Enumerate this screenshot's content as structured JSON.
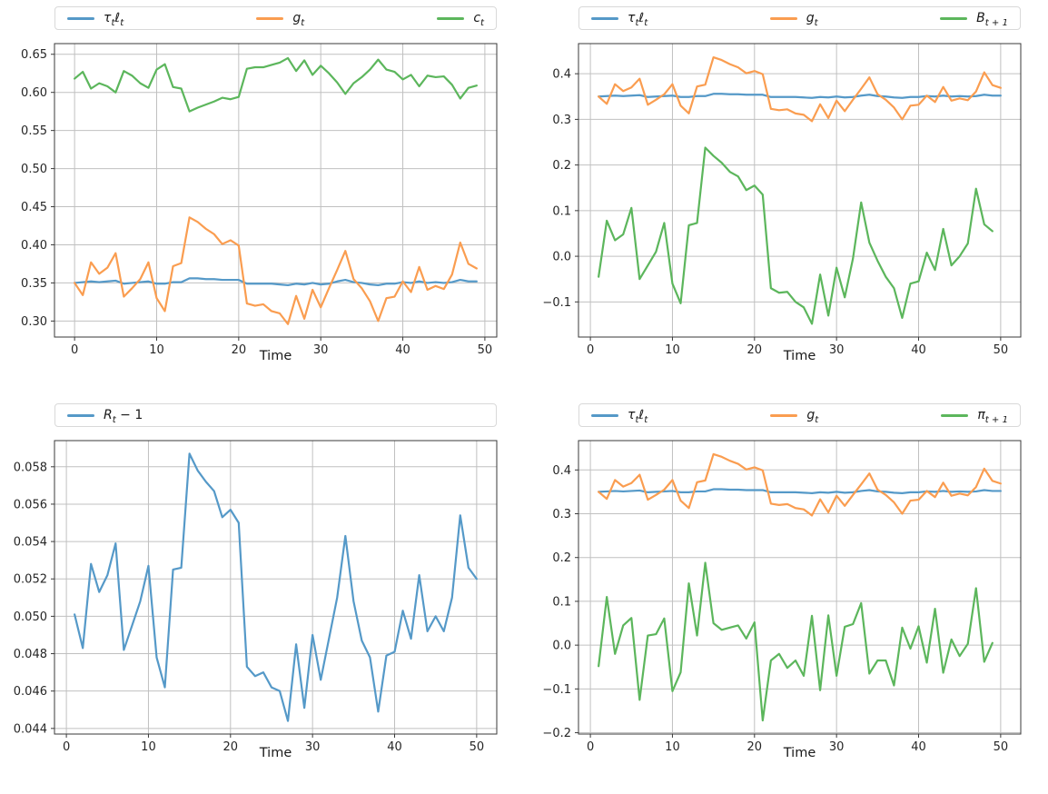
{
  "figure": {
    "background": "#ffffff",
    "grid_color": "#c0c0c0",
    "spine_color": "#3a3a3a",
    "tick_label_color": "#262626",
    "xlabel": "Time"
  },
  "palette": {
    "blue": "#5599C8",
    "orange": "#FA9D50",
    "green": "#5CB65C"
  },
  "chart_data": [
    {
      "id": "top-left",
      "type": "line",
      "xlabel": "Time",
      "xlim": [
        -2.45,
        51.45
      ],
      "ylim": [
        0.279,
        0.664
      ],
      "xticks": [
        0,
        10,
        20,
        30,
        40,
        50
      ],
      "yticks": [
        {
          "v": 0.3,
          "label": "0.30"
        },
        {
          "v": 0.35,
          "label": "0.35"
        },
        {
          "v": 0.4,
          "label": "0.40"
        },
        {
          "v": 0.45,
          "label": "0.45"
        },
        {
          "v": 0.5,
          "label": "0.50"
        },
        {
          "v": 0.55,
          "label": "0.55"
        },
        {
          "v": 0.6,
          "label": "0.60"
        },
        {
          "v": 0.65,
          "label": "0.65"
        }
      ],
      "grid": true,
      "legend_position": "top",
      "series": [
        {
          "name": "tau_t_ell_t",
          "label": [
            [
              "i",
              "τ"
            ],
            [
              "sub",
              "t"
            ],
            [
              "i",
              "ℓ"
            ],
            [
              "sub",
              "t"
            ]
          ],
          "color": "#5599C8",
          "x_start": 0,
          "values": [
            0.35,
            0.351,
            0.352,
            0.351,
            0.352,
            0.353,
            0.349,
            0.35,
            0.351,
            0.352,
            0.349,
            0.349,
            0.351,
            0.351,
            0.356,
            0.356,
            0.355,
            0.355,
            0.354,
            0.354,
            0.354,
            0.349,
            0.349,
            0.349,
            0.349,
            0.348,
            0.347,
            0.349,
            0.348,
            0.35,
            0.348,
            0.349,
            0.352,
            0.354,
            0.351,
            0.35,
            0.348,
            0.347,
            0.349,
            0.349,
            0.351,
            0.35,
            0.352,
            0.35,
            0.351,
            0.35,
            0.351,
            0.354,
            0.352,
            0.352
          ]
        },
        {
          "name": "g_t",
          "label": [
            [
              "i",
              "g"
            ],
            [
              "sub",
              "t"
            ]
          ],
          "color": "#FA9D50",
          "x_start": 0,
          "values": [
            0.35,
            0.334,
            0.377,
            0.362,
            0.37,
            0.389,
            0.332,
            0.343,
            0.355,
            0.377,
            0.33,
            0.313,
            0.372,
            0.376,
            0.436,
            0.43,
            0.421,
            0.414,
            0.401,
            0.406,
            0.399,
            0.323,
            0.32,
            0.322,
            0.313,
            0.31,
            0.296,
            0.333,
            0.303,
            0.341,
            0.318,
            0.343,
            0.367,
            0.392,
            0.355,
            0.343,
            0.326,
            0.3,
            0.33,
            0.332,
            0.352,
            0.338,
            0.371,
            0.341,
            0.346,
            0.342,
            0.361,
            0.403,
            0.375,
            0.369
          ]
        },
        {
          "name": "c_t",
          "label": [
            [
              "i",
              "c"
            ],
            [
              "sub",
              "t"
            ]
          ],
          "color": "#5CB65C",
          "x_start": 0,
          "values": [
            0.618,
            0.627,
            0.605,
            0.612,
            0.608,
            0.6,
            0.628,
            0.622,
            0.612,
            0.606,
            0.63,
            0.637,
            0.607,
            0.605,
            0.575,
            0.58,
            0.584,
            0.588,
            0.593,
            0.591,
            0.594,
            0.631,
            0.633,
            0.633,
            0.636,
            0.639,
            0.645,
            0.628,
            0.642,
            0.623,
            0.635,
            0.625,
            0.613,
            0.598,
            0.612,
            0.62,
            0.63,
            0.643,
            0.63,
            0.627,
            0.617,
            0.623,
            0.608,
            0.622,
            0.62,
            0.621,
            0.61,
            0.592,
            0.606,
            0.609
          ]
        }
      ]
    },
    {
      "id": "top-right",
      "type": "line",
      "xlabel": "Time",
      "xlim": [
        -1.45,
        52.45
      ],
      "ylim": [
        -0.177,
        0.466
      ],
      "xticks": [
        0,
        10,
        20,
        30,
        40,
        50
      ],
      "yticks": [
        {
          "v": -0.1,
          "label": "−0.1"
        },
        {
          "v": 0.0,
          "label": "0.0"
        },
        {
          "v": 0.1,
          "label": "0.1"
        },
        {
          "v": 0.2,
          "label": "0.2"
        },
        {
          "v": 0.3,
          "label": "0.3"
        },
        {
          "v": 0.4,
          "label": "0.4"
        }
      ],
      "grid": true,
      "legend_position": "top",
      "series": [
        {
          "name": "tau_t_ell_t",
          "label": [
            [
              "i",
              "τ"
            ],
            [
              "sub",
              "t"
            ],
            [
              "i",
              "ℓ"
            ],
            [
              "sub",
              "t"
            ]
          ],
          "color": "#5599C8",
          "x_start": 1,
          "values": [
            0.35,
            0.351,
            0.352,
            0.351,
            0.352,
            0.353,
            0.349,
            0.35,
            0.351,
            0.352,
            0.349,
            0.349,
            0.351,
            0.351,
            0.356,
            0.356,
            0.355,
            0.355,
            0.354,
            0.354,
            0.354,
            0.349,
            0.349,
            0.349,
            0.349,
            0.348,
            0.347,
            0.349,
            0.348,
            0.35,
            0.348,
            0.349,
            0.352,
            0.354,
            0.351,
            0.35,
            0.348,
            0.347,
            0.349,
            0.349,
            0.351,
            0.35,
            0.352,
            0.35,
            0.351,
            0.35,
            0.351,
            0.354,
            0.352,
            0.352
          ]
        },
        {
          "name": "g_t",
          "label": [
            [
              "i",
              "g"
            ],
            [
              "sub",
              "t"
            ]
          ],
          "color": "#FA9D50",
          "x_start": 1,
          "values": [
            0.35,
            0.334,
            0.377,
            0.362,
            0.37,
            0.389,
            0.332,
            0.343,
            0.355,
            0.377,
            0.33,
            0.313,
            0.372,
            0.376,
            0.436,
            0.43,
            0.421,
            0.414,
            0.401,
            0.406,
            0.399,
            0.323,
            0.32,
            0.322,
            0.313,
            0.31,
            0.296,
            0.333,
            0.303,
            0.341,
            0.318,
            0.343,
            0.367,
            0.392,
            0.355,
            0.343,
            0.326,
            0.3,
            0.33,
            0.332,
            0.352,
            0.338,
            0.371,
            0.341,
            0.346,
            0.342,
            0.361,
            0.403,
            0.375,
            0.369
          ]
        },
        {
          "name": "B_t+1",
          "label": [
            [
              "i",
              "B"
            ],
            [
              "sub",
              "t + 1"
            ]
          ],
          "color": "#5CB65C",
          "x_start": 1,
          "values": [
            -0.045,
            0.078,
            0.035,
            0.048,
            0.106,
            -0.05,
            -0.02,
            0.01,
            0.073,
            -0.06,
            -0.103,
            0.068,
            0.073,
            0.238,
            0.22,
            0.205,
            0.185,
            0.175,
            0.145,
            0.155,
            0.135,
            -0.07,
            -0.08,
            -0.078,
            -0.1,
            -0.112,
            -0.148,
            -0.04,
            -0.13,
            -0.025,
            -0.09,
            -0.005,
            0.118,
            0.03,
            -0.01,
            -0.045,
            -0.07,
            -0.135,
            -0.06,
            -0.055,
            0.008,
            -0.03,
            0.06,
            -0.02,
            0.0,
            0.028,
            0.148,
            0.07,
            0.055
          ]
        }
      ]
    },
    {
      "id": "bottom-left",
      "type": "line",
      "xlabel": "Time",
      "xlim": [
        -1.45,
        52.45
      ],
      "ylim": [
        0.0437,
        0.0594
      ],
      "xticks": [
        0,
        10,
        20,
        30,
        40,
        50
      ],
      "yticks": [
        {
          "v": 0.044,
          "label": "0.044"
        },
        {
          "v": 0.046,
          "label": "0.046"
        },
        {
          "v": 0.048,
          "label": "0.048"
        },
        {
          "v": 0.05,
          "label": "0.050"
        },
        {
          "v": 0.052,
          "label": "0.052"
        },
        {
          "v": 0.054,
          "label": "0.054"
        },
        {
          "v": 0.056,
          "label": "0.056"
        },
        {
          "v": 0.058,
          "label": "0.058"
        }
      ],
      "grid": true,
      "legend_position": "top",
      "series": [
        {
          "name": "R_t-1",
          "label": [
            [
              "i",
              "R"
            ],
            [
              "sub",
              "t"
            ],
            [
              "n",
              " − 1"
            ]
          ],
          "color": "#5599C8",
          "x_start": 1,
          "values": [
            0.0501,
            0.0483,
            0.0528,
            0.0513,
            0.0522,
            0.0539,
            0.0482,
            0.0495,
            0.0508,
            0.0527,
            0.0478,
            0.0462,
            0.0525,
            0.0526,
            0.0587,
            0.0578,
            0.0572,
            0.0567,
            0.0553,
            0.0557,
            0.055,
            0.0473,
            0.0468,
            0.047,
            0.0462,
            0.046,
            0.0444,
            0.0485,
            0.0451,
            0.049,
            0.0466,
            0.0488,
            0.051,
            0.0543,
            0.0508,
            0.0487,
            0.0478,
            0.0449,
            0.0479,
            0.0481,
            0.0503,
            0.0488,
            0.0522,
            0.0492,
            0.05,
            0.0492,
            0.051,
            0.0554,
            0.0526,
            0.052
          ]
        }
      ]
    },
    {
      "id": "bottom-right",
      "type": "line",
      "xlabel": "Time",
      "xlim": [
        -1.45,
        52.45
      ],
      "ylim": [
        -0.203,
        0.467
      ],
      "xticks": [
        0,
        10,
        20,
        30,
        40,
        50
      ],
      "yticks": [
        {
          "v": -0.2,
          "label": "−0.2"
        },
        {
          "v": -0.1,
          "label": "−0.1"
        },
        {
          "v": 0.0,
          "label": "0.0"
        },
        {
          "v": 0.1,
          "label": "0.1"
        },
        {
          "v": 0.2,
          "label": "0.2"
        },
        {
          "v": 0.3,
          "label": "0.3"
        },
        {
          "v": 0.4,
          "label": "0.4"
        }
      ],
      "grid": true,
      "legend_position": "top",
      "series": [
        {
          "name": "tau_t_ell_t",
          "label": [
            [
              "i",
              "τ"
            ],
            [
              "sub",
              "t"
            ],
            [
              "i",
              "ℓ"
            ],
            [
              "sub",
              "t"
            ]
          ],
          "color": "#5599C8",
          "x_start": 1,
          "values": [
            0.35,
            0.351,
            0.352,
            0.351,
            0.352,
            0.353,
            0.349,
            0.35,
            0.351,
            0.352,
            0.349,
            0.349,
            0.351,
            0.351,
            0.356,
            0.356,
            0.355,
            0.355,
            0.354,
            0.354,
            0.354,
            0.349,
            0.349,
            0.349,
            0.349,
            0.348,
            0.347,
            0.349,
            0.348,
            0.35,
            0.348,
            0.349,
            0.352,
            0.354,
            0.351,
            0.35,
            0.348,
            0.347,
            0.349,
            0.349,
            0.351,
            0.35,
            0.352,
            0.35,
            0.351,
            0.35,
            0.351,
            0.354,
            0.352,
            0.352
          ]
        },
        {
          "name": "g_t",
          "label": [
            [
              "i",
              "g"
            ],
            [
              "sub",
              "t"
            ]
          ],
          "color": "#FA9D50",
          "x_start": 1,
          "values": [
            0.35,
            0.334,
            0.377,
            0.362,
            0.37,
            0.389,
            0.332,
            0.343,
            0.355,
            0.377,
            0.33,
            0.313,
            0.372,
            0.376,
            0.436,
            0.43,
            0.421,
            0.414,
            0.401,
            0.406,
            0.399,
            0.323,
            0.32,
            0.322,
            0.313,
            0.31,
            0.296,
            0.333,
            0.303,
            0.341,
            0.318,
            0.343,
            0.367,
            0.392,
            0.355,
            0.343,
            0.326,
            0.3,
            0.33,
            0.332,
            0.352,
            0.338,
            0.371,
            0.341,
            0.346,
            0.342,
            0.361,
            0.403,
            0.375,
            0.369
          ]
        },
        {
          "name": "pi_t+1",
          "label": [
            [
              "i",
              "π"
            ],
            [
              "sub",
              "t + 1"
            ]
          ],
          "color": "#5CB65C",
          "x_start": 1,
          "values": [
            -0.048,
            0.11,
            -0.02,
            0.045,
            0.062,
            -0.125,
            0.022,
            0.025,
            0.061,
            -0.105,
            -0.062,
            0.141,
            0.022,
            0.188,
            0.05,
            0.035,
            0.04,
            0.045,
            0.015,
            0.052,
            -0.172,
            -0.035,
            -0.02,
            -0.052,
            -0.035,
            -0.07,
            0.067,
            -0.103,
            0.068,
            -0.07,
            0.042,
            0.048,
            0.096,
            -0.065,
            -0.035,
            -0.035,
            -0.092,
            0.04,
            -0.008,
            0.043,
            -0.04,
            0.083,
            -0.063,
            0.013,
            -0.025,
            0.003,
            0.13,
            -0.038,
            0.005
          ]
        }
      ]
    }
  ]
}
